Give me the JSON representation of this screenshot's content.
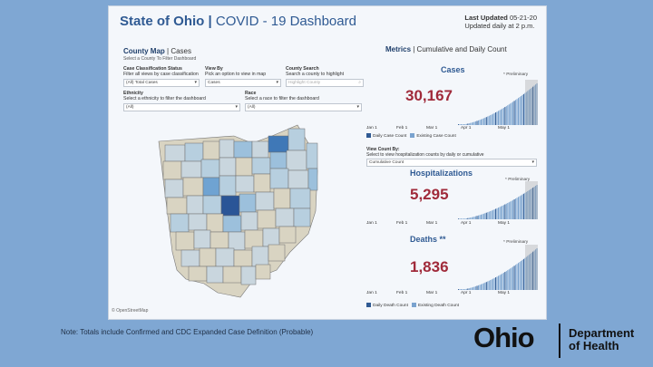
{
  "header": {
    "title_part1": "State of Ohio",
    "title_sep": " | ",
    "title_part2": "COVID - 19 Dashboard",
    "last_updated_label": "Last Updated",
    "last_updated_date": "05-21-20",
    "updated_note": "Updated daily at 2 p.m."
  },
  "county_map": {
    "title": "County Map",
    "title_suffix": "Cases",
    "subtitle": "Select a County To Filter Dashboard",
    "filters": [
      {
        "label": "Case Classification Status",
        "help": "Filter all views by case classification",
        "value": "(All) Total Cases"
      },
      {
        "label": "View By",
        "help": "Pick an option to view in map",
        "value": "Cases"
      },
      {
        "label": "County Search",
        "help": "Search a county to highlight",
        "value": "",
        "placeholder": "Highlight County"
      },
      {
        "label": "Ethnicity",
        "help": "Select a ethnicity to filter the dashboard",
        "value": "(All)"
      },
      {
        "label": "Race",
        "help": "Select a race to filter the dashboard",
        "value": "(All)"
      }
    ],
    "attribution": "© OpenStreetMap"
  },
  "metrics": {
    "title": "Metrics",
    "subtitle": "Cumulative and Daily Count",
    "view_count_label": "View Count By:",
    "view_count_help": "Select to view hospitalization counts by daily or cumulative",
    "view_count_value": "Cumulative Count",
    "preliminary": "* Preliminary",
    "x_ticks": [
      "Jan 1",
      "Feb 1",
      "Mar 1",
      "Apr 1",
      "May 1"
    ],
    "cases": {
      "title": "Cases",
      "value": "30,167",
      "legend_daily": "Daily Case Count",
      "legend_existing": "Existing Case Count"
    },
    "hospitalizations": {
      "title": "Hospitalizations",
      "value": "5,295"
    },
    "deaths": {
      "title": "Deaths **",
      "value": "1,836",
      "legend_daily": "Daily Death Count",
      "legend_existing": "Existing Death Count"
    }
  },
  "colors": {
    "accent": "#2f5a93",
    "number": "#a02a3a",
    "bar": "#7aa3cf",
    "bar_dark": "#2f5a93",
    "background": "#7fa7d3"
  },
  "footer": {
    "note": "Note: Totals include Confirmed and CDC Expanded Case Definition (Probable)",
    "logo": "Ohio",
    "department_line1": "Department",
    "department_line2": "of Health"
  }
}
